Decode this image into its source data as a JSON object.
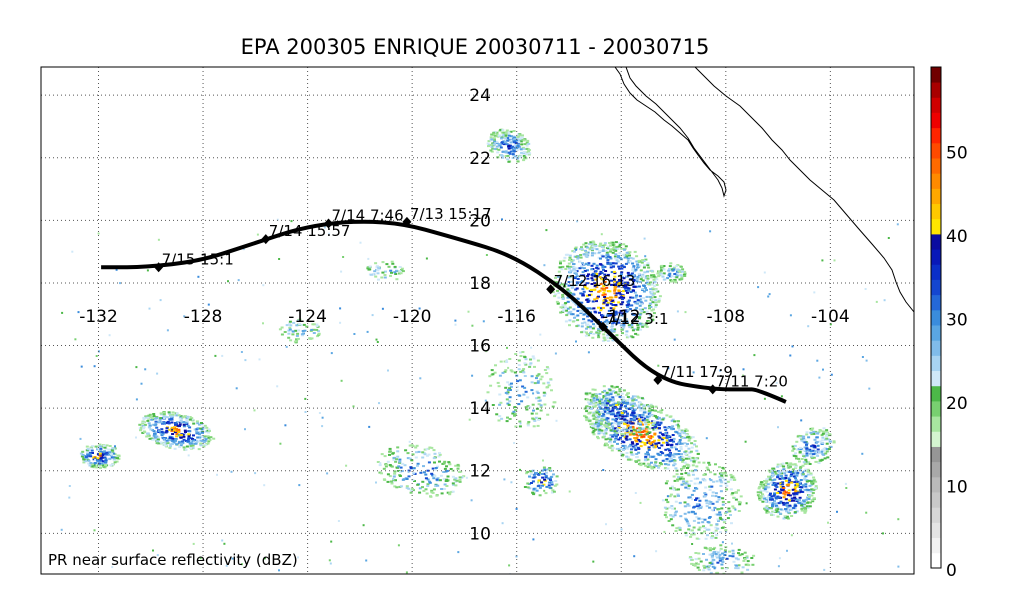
{
  "title": "EPA 200305 ENRIQUE 20030711 - 20030715",
  "caption": "PR near surface reflectivity (dBZ)",
  "map": {
    "lon_range": [
      -134.2,
      -100.8
    ],
    "lat_range": [
      8.7,
      24.9
    ],
    "lon_ticks": [
      -132,
      -128,
      -124,
      -120,
      -116,
      -112,
      -108,
      -104
    ],
    "lat_ticks": [
      10,
      12,
      14,
      16,
      18,
      20,
      22,
      24
    ],
    "lon_labels": [
      "-132",
      "-128",
      "-124",
      "-120",
      "-116",
      "-112",
      "-108",
      "-104"
    ],
    "lat_labels": [
      "10",
      "12",
      "14",
      "16",
      "18",
      "20",
      "22",
      "24"
    ],
    "label_lat": 16.95,
    "label_lon": -117.4,
    "grid": "dotted"
  },
  "track": {
    "name": "ENRIQUE",
    "points": [
      {
        "lon": -105.7,
        "lat": 14.2
      },
      {
        "lon": -106.8,
        "lat": 14.6
      },
      {
        "lon": -107.2,
        "lat": 14.6
      },
      {
        "lon": -108.5,
        "lat": 14.6
      },
      {
        "lon": -110.6,
        "lat": 14.9
      },
      {
        "lon": -112.7,
        "lat": 16.6
      },
      {
        "lon": -114.2,
        "lat": 17.8
      },
      {
        "lon": -116.2,
        "lat": 18.9
      },
      {
        "lon": -118.2,
        "lat": 19.4
      },
      {
        "lon": -120.8,
        "lat": 20.0
      },
      {
        "lon": -123.7,
        "lat": 19.9
      },
      {
        "lon": -126.3,
        "lat": 19.2
      },
      {
        "lon": -128.1,
        "lat": 18.7
      },
      {
        "lon": -130.3,
        "lat": 18.5
      },
      {
        "lon": -131.9,
        "lat": 18.5
      }
    ],
    "overpasses": [
      {
        "label": "7/11 7:20",
        "lon": -108.5,
        "lat": 14.6
      },
      {
        "label": "7/11 17:9",
        "lon": -110.6,
        "lat": 14.9
      },
      {
        "label": "7/12 3:1",
        "lon": -112.7,
        "lat": 16.6
      },
      {
        "label": "7/12 16:13",
        "lon": -114.7,
        "lat": 17.8
      },
      {
        "label": "7/13 15:17",
        "lon": -120.2,
        "lat": 19.95
      },
      {
        "label": "7/14 7:46",
        "lon": -123.2,
        "lat": 19.9
      },
      {
        "label": "7/14 15:57",
        "lon": -125.6,
        "lat": 19.4
      },
      {
        "label": "7/15 15:1",
        "lon": -129.7,
        "lat": 18.5
      }
    ]
  },
  "colorbar": {
    "min": 0,
    "max": 60,
    "ticks": [
      0,
      10,
      20,
      30,
      40,
      50
    ],
    "tick_labels": [
      "0",
      "10",
      "20",
      "30",
      "40",
      "50"
    ],
    "colors": [
      "#ffffff",
      "#f2f2f2",
      "#e4e4e4",
      "#d6d6d6",
      "#c8c8c8",
      "#bababa",
      "#a8a8a8",
      "#969696",
      "#d4f5d0",
      "#a8e6a0",
      "#78d070",
      "#4cb848",
      "#cfe8f8",
      "#a8d4f2",
      "#80bcea",
      "#5aa6e2",
      "#3a8cdc",
      "#2468d8",
      "#1446d0",
      "#0a2ec8",
      "#0818b8",
      "#0a0ca0",
      "#ffe600",
      "#ffc800",
      "#ffa800",
      "#ff8a00",
      "#ff6a00",
      "#ff4a00",
      "#ff2400",
      "#ee0000",
      "#d00000",
      "#a80000",
      "#700000"
    ]
  },
  "coastline_color": "#000000",
  "track_color": "#000000"
}
